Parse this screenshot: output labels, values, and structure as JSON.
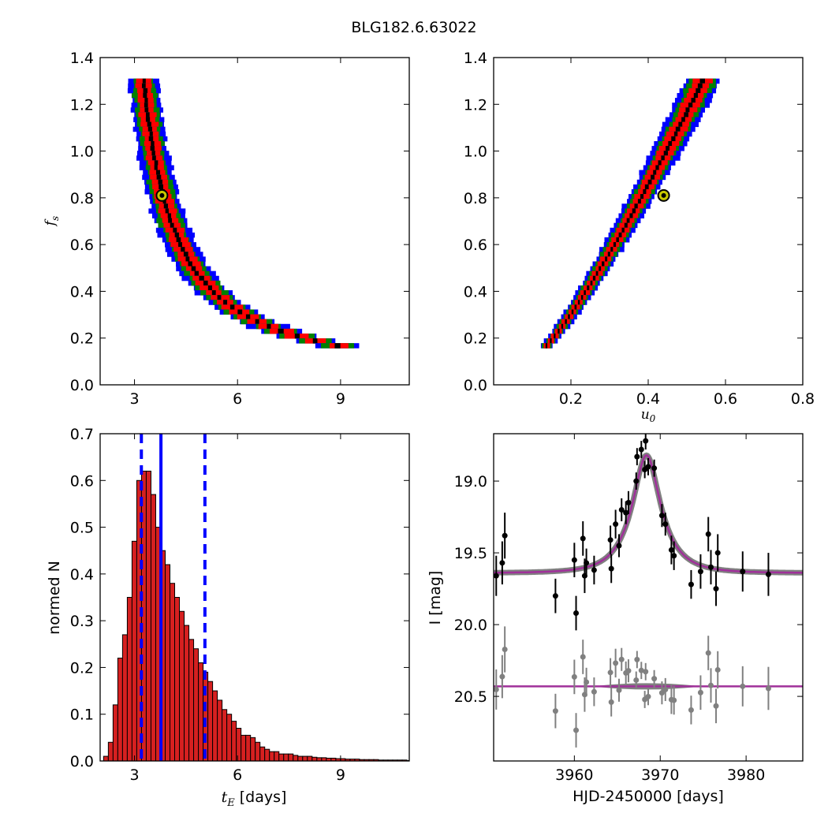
{
  "figure_title": "BLG182.6.63022",
  "chart_data": [
    {
      "id": "tE-fs",
      "type": "scatter",
      "description_level": "2D posterior density (3 confidence levels) of blending vs timescale",
      "xlabel": "",
      "ylabel_main": "f",
      "ylabel_sub": "s",
      "xlim": [
        2.0,
        11.0
      ],
      "ylim": [
        0.0,
        1.4
      ],
      "xticks": [
        3,
        6,
        9
      ],
      "yticks": [
        0.0,
        0.2,
        0.4,
        0.6,
        0.8,
        1.0,
        1.2,
        1.4
      ],
      "best_fit": {
        "x": 3.8,
        "y": 0.81
      },
      "levels": [
        {
          "name": "3-sigma",
          "color": "#0000ff"
        },
        {
          "name": "2-sigma",
          "color": "#008000"
        },
        {
          "name": "1-sigma",
          "color": "#ff0000"
        },
        {
          "name": "peak",
          "color": "#000000"
        }
      ]
    },
    {
      "id": "u0-fs",
      "type": "scatter",
      "xlabel_main": "u",
      "xlabel_sub": "0",
      "ylabel": "",
      "xlim": [
        0.0,
        0.8
      ],
      "ylim": [
        0.0,
        1.4
      ],
      "xticks": [
        0.2,
        0.4,
        0.6,
        0.8
      ],
      "yticks": [
        0.0,
        0.2,
        0.4,
        0.6,
        0.8,
        1.0,
        1.2,
        1.4
      ],
      "best_fit": {
        "x": 0.44,
        "y": 0.81
      },
      "levels": [
        {
          "name": "3-sigma",
          "color": "#0000ff"
        },
        {
          "name": "2-sigma",
          "color": "#008000"
        },
        {
          "name": "1-sigma",
          "color": "#ff0000"
        },
        {
          "name": "peak",
          "color": "#000000"
        }
      ]
    },
    {
      "id": "tE-hist",
      "type": "bar",
      "xlabel_main": "t",
      "xlabel_sub": "E",
      "xlabel_unit": " [days]",
      "ylabel": "normed N",
      "xlim": [
        2.0,
        11.0
      ],
      "ylim": [
        0.0,
        0.7
      ],
      "xticks": [
        3,
        6,
        9
      ],
      "yticks": [
        0.0,
        0.1,
        0.2,
        0.3,
        0.4,
        0.5,
        0.6,
        0.7
      ],
      "bar_color": "#d62020",
      "bin_start": 2.1,
      "bin_width": 0.138,
      "values": [
        0.01,
        0.04,
        0.12,
        0.22,
        0.27,
        0.35,
        0.47,
        0.6,
        0.62,
        0.62,
        0.57,
        0.5,
        0.45,
        0.42,
        0.38,
        0.35,
        0.32,
        0.29,
        0.26,
        0.24,
        0.21,
        0.19,
        0.17,
        0.15,
        0.13,
        0.11,
        0.1,
        0.085,
        0.07,
        0.055,
        0.055,
        0.05,
        0.04,
        0.03,
        0.025,
        0.02,
        0.02,
        0.015,
        0.015,
        0.015,
        0.012,
        0.01,
        0.01,
        0.01,
        0.008,
        0.007,
        0.007,
        0.006,
        0.006,
        0.005,
        0.005,
        0.004,
        0.004,
        0.004,
        0.003,
        0.003,
        0.003,
        0.003,
        0.002,
        0.002,
        0.002,
        0.002,
        0.002,
        0.002,
        0.001
      ],
      "vlines": [
        {
          "x": 3.77,
          "style": "solid",
          "color": "#0000ff"
        },
        {
          "x": 3.2,
          "style": "dashed",
          "color": "#0000ff"
        },
        {
          "x": 5.05,
          "style": "dashed",
          "color": "#0000ff"
        }
      ]
    },
    {
      "id": "lightcurve",
      "type": "scatter",
      "xlabel": "HJD-2450000 [days]",
      "ylabel": "I [mag]",
      "xlim": [
        3950.6,
        3986.6
      ],
      "ylim": [
        20.95,
        18.67
      ],
      "xticks": [
        3960,
        3970,
        3980
      ],
      "yticks": [
        19.0,
        19.5,
        20.0,
        20.5
      ],
      "model": {
        "t0": 3968.4,
        "tE": 3.8,
        "u0": 0.44,
        "base": 19.64,
        "peak_mag": 18.82,
        "color": "#a0309a",
        "band_color": "#808080"
      },
      "residual_baseline": 20.43,
      "points": [
        {
          "t": 3950.9,
          "mag": 19.66,
          "err": 0.14
        },
        {
          "t": 3951.6,
          "mag": 19.57,
          "err": 0.15
        },
        {
          "t": 3951.9,
          "mag": 19.38,
          "err": 0.16
        },
        {
          "t": 3957.8,
          "mag": 19.8,
          "err": 0.12
        },
        {
          "t": 3960.0,
          "mag": 19.55,
          "err": 0.12
        },
        {
          "t": 3960.2,
          "mag": 19.92,
          "err": 0.12
        },
        {
          "t": 3961.0,
          "mag": 19.4,
          "err": 0.12
        },
        {
          "t": 3961.2,
          "mag": 19.66,
          "err": 0.12
        },
        {
          "t": 3961.4,
          "mag": 19.57,
          "err": 0.1
        },
        {
          "t": 3962.3,
          "mag": 19.62,
          "err": 0.1
        },
        {
          "t": 3964.2,
          "mag": 19.41,
          "err": 0.1
        },
        {
          "t": 3964.3,
          "mag": 19.61,
          "err": 0.1
        },
        {
          "t": 3964.8,
          "mag": 19.3,
          "err": 0.1
        },
        {
          "t": 3965.2,
          "mag": 19.45,
          "err": 0.08
        },
        {
          "t": 3965.5,
          "mag": 19.2,
          "err": 0.08
        },
        {
          "t": 3966.0,
          "mag": 19.22,
          "err": 0.08
        },
        {
          "t": 3966.3,
          "mag": 19.15,
          "err": 0.08
        },
        {
          "t": 3967.2,
          "mag": 19.0,
          "err": 0.06
        },
        {
          "t": 3967.3,
          "mag": 18.83,
          "err": 0.06
        },
        {
          "t": 3967.8,
          "mag": 18.78,
          "err": 0.06
        },
        {
          "t": 3968.2,
          "mag": 18.92,
          "err": 0.06
        },
        {
          "t": 3968.3,
          "mag": 18.72,
          "err": 0.06
        },
        {
          "t": 3968.6,
          "mag": 18.9,
          "err": 0.06
        },
        {
          "t": 3969.3,
          "mag": 18.91,
          "err": 0.06
        },
        {
          "t": 3970.2,
          "mag": 19.24,
          "err": 0.08
        },
        {
          "t": 3970.6,
          "mag": 19.3,
          "err": 0.08
        },
        {
          "t": 3971.3,
          "mag": 19.48,
          "err": 0.1
        },
        {
          "t": 3971.6,
          "mag": 19.52,
          "err": 0.1
        },
        {
          "t": 3973.6,
          "mag": 19.72,
          "err": 0.1
        },
        {
          "t": 3974.7,
          "mag": 19.63,
          "err": 0.12
        },
        {
          "t": 3975.6,
          "mag": 19.37,
          "err": 0.12
        },
        {
          "t": 3975.9,
          "mag": 19.6,
          "err": 0.12
        },
        {
          "t": 3976.5,
          "mag": 19.75,
          "err": 0.12
        },
        {
          "t": 3976.7,
          "mag": 19.5,
          "err": 0.13
        },
        {
          "t": 3979.6,
          "mag": 19.63,
          "err": 0.14
        },
        {
          "t": 3982.6,
          "mag": 19.65,
          "err": 0.15
        }
      ]
    }
  ]
}
